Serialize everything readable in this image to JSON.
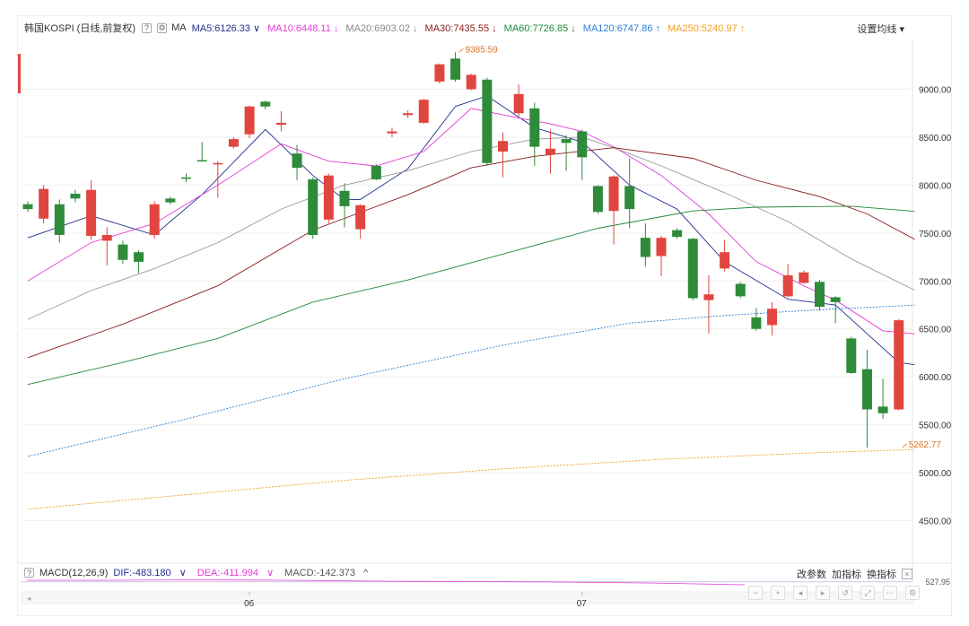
{
  "header": {
    "symbol": "韩国KOSPI (日线,前复权)",
    "ma_label": "MA",
    "settings_label": "设置均线",
    "help_icon": "?",
    "gear_icon": "gear-icon"
  },
  "ma_values": [
    {
      "label": "MA5:6126.33",
      "arrow": "∨",
      "color": "#1f2d8c"
    },
    {
      "label": "MA10:6448.11",
      "arrow": "↓",
      "color": "#e33bd8"
    },
    {
      "label": "MA20:6903.02",
      "arrow": "↓",
      "color": "#888888"
    },
    {
      "label": "MA30:7435.55",
      "arrow": "↓",
      "color": "#8b1a1a"
    },
    {
      "label": "MA60:7726.85",
      "arrow": "↓",
      "color": "#1f8a3a"
    },
    {
      "label": "MA120:6747.86",
      "arrow": "↑",
      "color": "#2b7fd3"
    },
    {
      "label": "MA250:5240.97",
      "arrow": "↑",
      "color": "#f0a020"
    }
  ],
  "macd_bar": {
    "help_icon": "?",
    "name": "MACD(12,26,9)",
    "dif": "DIF:-483.180",
    "dif_arrow": "∨",
    "dea": "DEA:-411.994",
    "dea_arrow": "∨",
    "macd": "MACD:-142.373",
    "macd_arrow": "^",
    "tools": [
      "改参数",
      "加指标",
      "换指标"
    ],
    "close_icon": "×",
    "bottom_label": "527.95"
  },
  "colors": {
    "up": "#e0463f",
    "down": "#2e8b3a"
  },
  "chart_data": {
    "type": "candlestick",
    "title": "韩国KOSPI (日线,前复权)",
    "ylim": [
      4000,
      9700
    ],
    "yticks": [
      4500,
      5000,
      5500,
      6000,
      6500,
      7000,
      7500,
      8000,
      8500,
      9000
    ],
    "ytick_labels": [
      "4500.00",
      "5000.00",
      "5500.00",
      "6000.00",
      "6500.00",
      "7000.00",
      "7500.00",
      "8000.00",
      "8500.00",
      "9000.00"
    ],
    "xtick_labels": [
      {
        "label": "06",
        "index": 14
      },
      {
        "label": "07",
        "index": 35
      }
    ],
    "annotations": [
      {
        "label": "9385.59",
        "index": 27,
        "value": 9385.59
      },
      {
        "label": "5262.77",
        "index": 55,
        "value": 5262.77
      }
    ],
    "candles": [
      {
        "o": 7800,
        "c": 7750,
        "h": 7830,
        "l": 7720
      },
      {
        "o": 7650,
        "c": 7960,
        "h": 8000,
        "l": 7600
      },
      {
        "o": 7800,
        "c": 7480,
        "h": 7850,
        "l": 7400
      },
      {
        "o": 7910,
        "c": 7860,
        "h": 7950,
        "l": 7820
      },
      {
        "o": 7470,
        "c": 7950,
        "h": 8050,
        "l": 7430
      },
      {
        "o": 7420,
        "c": 7480,
        "h": 7560,
        "l": 7160
      },
      {
        "o": 7380,
        "c": 7220,
        "h": 7420,
        "l": 7180
      },
      {
        "o": 7300,
        "c": 7200,
        "h": 7320,
        "l": 7080
      },
      {
        "o": 7480,
        "c": 7800,
        "h": 7830,
        "l": 7440
      },
      {
        "o": 7860,
        "c": 7820,
        "h": 7880,
        "l": 7800
      },
      {
        "o": 8080,
        "c": 8070,
        "h": 8120,
        "l": 8030
      },
      {
        "o": 8260,
        "c": 8250,
        "h": 8450,
        "l": 8250
      },
      {
        "o": 8220,
        "c": 8230,
        "h": 8250,
        "l": 7870
      },
      {
        "o": 8400,
        "c": 8480,
        "h": 8500,
        "l": 8380
      },
      {
        "o": 8530,
        "c": 8820,
        "h": 8830,
        "l": 8490
      },
      {
        "o": 8870,
        "c": 8820,
        "h": 8880,
        "l": 8790
      },
      {
        "o": 8630,
        "c": 8650,
        "h": 8770,
        "l": 8560
      },
      {
        "o": 8330,
        "c": 8180,
        "h": 8420,
        "l": 8050
      },
      {
        "o": 8060,
        "c": 7480,
        "h": 8080,
        "l": 7440
      },
      {
        "o": 7640,
        "c": 8100,
        "h": 8120,
        "l": 7600
      },
      {
        "o": 7940,
        "c": 7780,
        "h": 8020,
        "l": 7560
      },
      {
        "o": 7540,
        "c": 7790,
        "h": 7800,
        "l": 7440
      },
      {
        "o": 8200,
        "c": 8060,
        "h": 8220,
        "l": 8050
      },
      {
        "o": 8540,
        "c": 8560,
        "h": 8600,
        "l": 8500
      },
      {
        "o": 8730,
        "c": 8750,
        "h": 8780,
        "l": 8700
      },
      {
        "o": 8650,
        "c": 8890,
        "h": 8900,
        "l": 8640
      },
      {
        "o": 9080,
        "c": 9260,
        "h": 9270,
        "l": 9060
      },
      {
        "o": 9320,
        "c": 9100,
        "h": 9385.59,
        "l": 9080
      },
      {
        "o": 9000,
        "c": 9150,
        "h": 9160,
        "l": 8990
      },
      {
        "o": 9100,
        "c": 8230,
        "h": 9120,
        "l": 8200
      },
      {
        "o": 8350,
        "c": 8460,
        "h": 8550,
        "l": 8080
      },
      {
        "o": 8750,
        "c": 8950,
        "h": 9050,
        "l": 8720
      },
      {
        "o": 8800,
        "c": 8400,
        "h": 8860,
        "l": 8200
      },
      {
        "o": 8320,
        "c": 8380,
        "h": 8580,
        "l": 8120
      },
      {
        "o": 8480,
        "c": 8440,
        "h": 8520,
        "l": 8150
      },
      {
        "o": 8560,
        "c": 8290,
        "h": 8580,
        "l": 8050
      },
      {
        "o": 7990,
        "c": 7720,
        "h": 8000,
        "l": 7700
      },
      {
        "o": 7730,
        "c": 8090,
        "h": 8100,
        "l": 7380
      },
      {
        "o": 7990,
        "c": 7750,
        "h": 8280,
        "l": 7550
      },
      {
        "o": 7450,
        "c": 7250,
        "h": 7600,
        "l": 7150
      },
      {
        "o": 7260,
        "c": 7450,
        "h": 7470,
        "l": 7050
      },
      {
        "o": 7530,
        "c": 7460,
        "h": 7550,
        "l": 7440
      },
      {
        "o": 7440,
        "c": 6820,
        "h": 7450,
        "l": 6800
      },
      {
        "o": 6800,
        "c": 6860,
        "h": 7060,
        "l": 6450
      },
      {
        "o": 7130,
        "c": 7300,
        "h": 7430,
        "l": 7100
      },
      {
        "o": 6970,
        "c": 6840,
        "h": 6990,
        "l": 6820
      },
      {
        "o": 6620,
        "c": 6500,
        "h": 6720,
        "l": 6480
      },
      {
        "o": 6540,
        "c": 6710,
        "h": 6780,
        "l": 6430
      },
      {
        "o": 6840,
        "c": 7060,
        "h": 7180,
        "l": 6830
      },
      {
        "o": 6980,
        "c": 7090,
        "h": 7110,
        "l": 6970
      },
      {
        "o": 6990,
        "c": 6730,
        "h": 7010,
        "l": 6690
      },
      {
        "o": 6830,
        "c": 6780,
        "h": 6840,
        "l": 6560
      },
      {
        "o": 6400,
        "c": 6040,
        "h": 6420,
        "l": 6030
      },
      {
        "o": 6080,
        "c": 5660,
        "h": 6280,
        "l": 5262.77
      },
      {
        "o": 5690,
        "c": 5620,
        "h": 5980,
        "l": 5560
      },
      {
        "o": 5660,
        "c": 6590,
        "h": 6600,
        "l": 5650
      }
    ],
    "ma_lines": [
      {
        "name": "MA5",
        "color": "#1f2d8c",
        "dash": "",
        "pts": [
          [
            0,
            7450
          ],
          [
            4,
            7680
          ],
          [
            8,
            7480
          ],
          [
            11,
            7900
          ],
          [
            15,
            8580
          ],
          [
            18,
            8100
          ],
          [
            20,
            7850
          ],
          [
            21,
            7850
          ],
          [
            24,
            8170
          ],
          [
            27,
            8820
          ],
          [
            29,
            8930
          ],
          [
            32,
            8600
          ],
          [
            35,
            8450
          ],
          [
            38,
            8000
          ],
          [
            41,
            7750
          ],
          [
            44,
            7200
          ],
          [
            48,
            6810
          ],
          [
            51,
            6750
          ],
          [
            53,
            6450
          ],
          [
            55,
            6150
          ],
          [
            56,
            6126
          ]
        ]
      },
      {
        "name": "MA10",
        "color": "#e33bd8",
        "dash": "",
        "pts": [
          [
            0,
            7000
          ],
          [
            4,
            7400
          ],
          [
            8,
            7600
          ],
          [
            12,
            8000
          ],
          [
            16,
            8430
          ],
          [
            19,
            8250
          ],
          [
            22,
            8200
          ],
          [
            25,
            8350
          ],
          [
            28,
            8800
          ],
          [
            31,
            8700
          ],
          [
            33,
            8640
          ],
          [
            35,
            8560
          ],
          [
            37,
            8400
          ],
          [
            40,
            8100
          ],
          [
            43,
            7700
          ],
          [
            46,
            7200
          ],
          [
            49,
            6950
          ],
          [
            51,
            6800
          ],
          [
            54,
            6480
          ],
          [
            56,
            6448
          ]
        ]
      },
      {
        "name": "MA20",
        "color": "#999999",
        "dash": "",
        "pts": [
          [
            0,
            6600
          ],
          [
            4,
            6900
          ],
          [
            8,
            7130
          ],
          [
            12,
            7400
          ],
          [
            16,
            7750
          ],
          [
            20,
            8000
          ],
          [
            24,
            8150
          ],
          [
            28,
            8350
          ],
          [
            32,
            8480
          ],
          [
            35,
            8500
          ],
          [
            37,
            8390
          ],
          [
            40,
            8200
          ],
          [
            44,
            7920
          ],
          [
            48,
            7620
          ],
          [
            52,
            7230
          ],
          [
            56,
            6903
          ]
        ]
      },
      {
        "name": "MA30",
        "color": "#8b1a1a",
        "dash": "",
        "pts": [
          [
            0,
            6200
          ],
          [
            6,
            6550
          ],
          [
            12,
            6950
          ],
          [
            18,
            7530
          ],
          [
            24,
            7900
          ],
          [
            28,
            8180
          ],
          [
            32,
            8300
          ],
          [
            37,
            8390
          ],
          [
            42,
            8280
          ],
          [
            46,
            8050
          ],
          [
            50,
            7880
          ],
          [
            53,
            7700
          ],
          [
            56,
            7435
          ]
        ]
      },
      {
        "name": "MA60",
        "color": "#1f8a3a",
        "dash": "",
        "pts": [
          [
            0,
            5920
          ],
          [
            6,
            6150
          ],
          [
            12,
            6400
          ],
          [
            18,
            6780
          ],
          [
            24,
            7010
          ],
          [
            30,
            7280
          ],
          [
            36,
            7550
          ],
          [
            42,
            7730
          ],
          [
            46,
            7770
          ],
          [
            52,
            7780
          ],
          [
            56,
            7727
          ]
        ]
      },
      {
        "name": "MA120",
        "color": "#2b7fd3",
        "dash": "2,1.5",
        "pts": [
          [
            0,
            5170
          ],
          [
            10,
            5560
          ],
          [
            20,
            5980
          ],
          [
            30,
            6330
          ],
          [
            38,
            6560
          ],
          [
            44,
            6640
          ],
          [
            50,
            6700
          ],
          [
            56,
            6748
          ]
        ]
      },
      {
        "name": "MA250",
        "color": "#f0a020",
        "dash": "2,1.5",
        "pts": [
          [
            0,
            4620
          ],
          [
            10,
            4770
          ],
          [
            20,
            4920
          ],
          [
            30,
            5040
          ],
          [
            40,
            5140
          ],
          [
            50,
            5210
          ],
          [
            56,
            5241
          ]
        ]
      }
    ]
  }
}
